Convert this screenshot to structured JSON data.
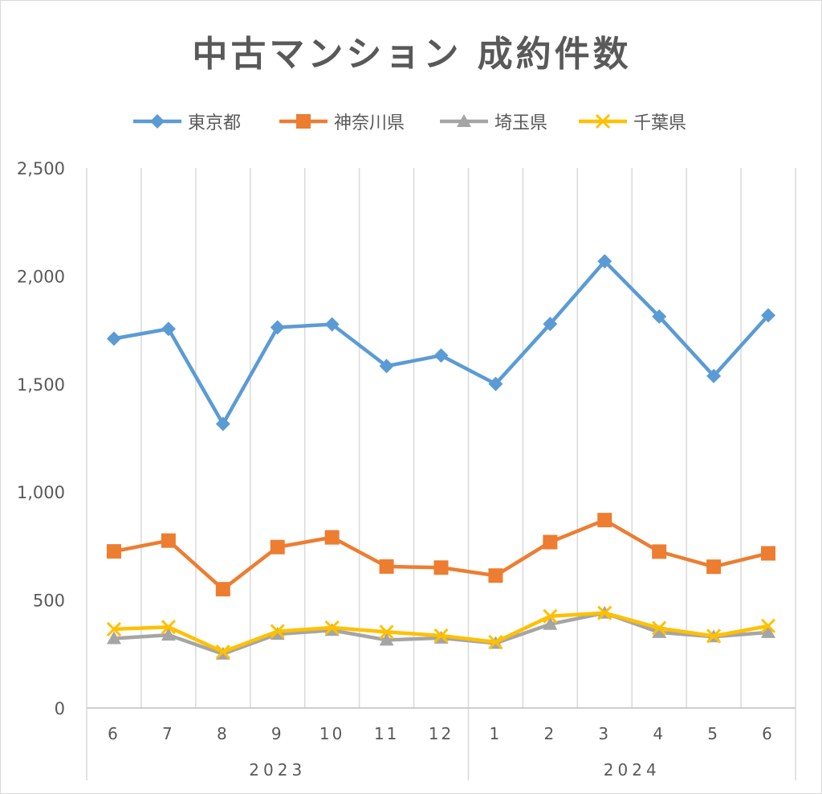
{
  "chart_data": {
    "type": "line",
    "title": "中古マンション 成約件数",
    "categories": [
      "6",
      "7",
      "8",
      "9",
      "10",
      "11",
      "12",
      "1",
      "2",
      "3",
      "4",
      "5",
      "6"
    ],
    "year_groups": [
      {
        "label": "2023",
        "start": 0,
        "end": 6
      },
      {
        "label": "2024",
        "start": 7,
        "end": 12
      }
    ],
    "ylim": [
      0,
      2500
    ],
    "y_ticks": [
      0,
      500,
      1000,
      1500,
      2000,
      2500
    ],
    "y_tick_labels": [
      "0",
      "500",
      "1,000",
      "1,500",
      "2,000",
      "2,500"
    ],
    "grid": "vertical",
    "legend_position": "top",
    "series": [
      {
        "name": "東京都",
        "color": "#5B9BD5",
        "marker": "diamond",
        "values": [
          1710,
          1755,
          1315,
          1762,
          1776,
          1583,
          1632,
          1500,
          1778,
          2068,
          1812,
          1537,
          1818
        ]
      },
      {
        "name": "神奈川県",
        "color": "#ED7D31",
        "marker": "square",
        "values": [
          725,
          775,
          550,
          745,
          790,
          655,
          650,
          613,
          768,
          870,
          724,
          654,
          716
        ]
      },
      {
        "name": "埼玉県",
        "color": "#A5A5A5",
        "marker": "triangle",
        "values": [
          322,
          338,
          250,
          342,
          360,
          315,
          324,
          300,
          388,
          440,
          350,
          330,
          350
        ]
      },
      {
        "name": "千葉県",
        "color": "#FFC000",
        "marker": "x",
        "values": [
          365,
          375,
          260,
          355,
          372,
          352,
          335,
          305,
          425,
          440,
          370,
          333,
          380
        ]
      }
    ]
  }
}
